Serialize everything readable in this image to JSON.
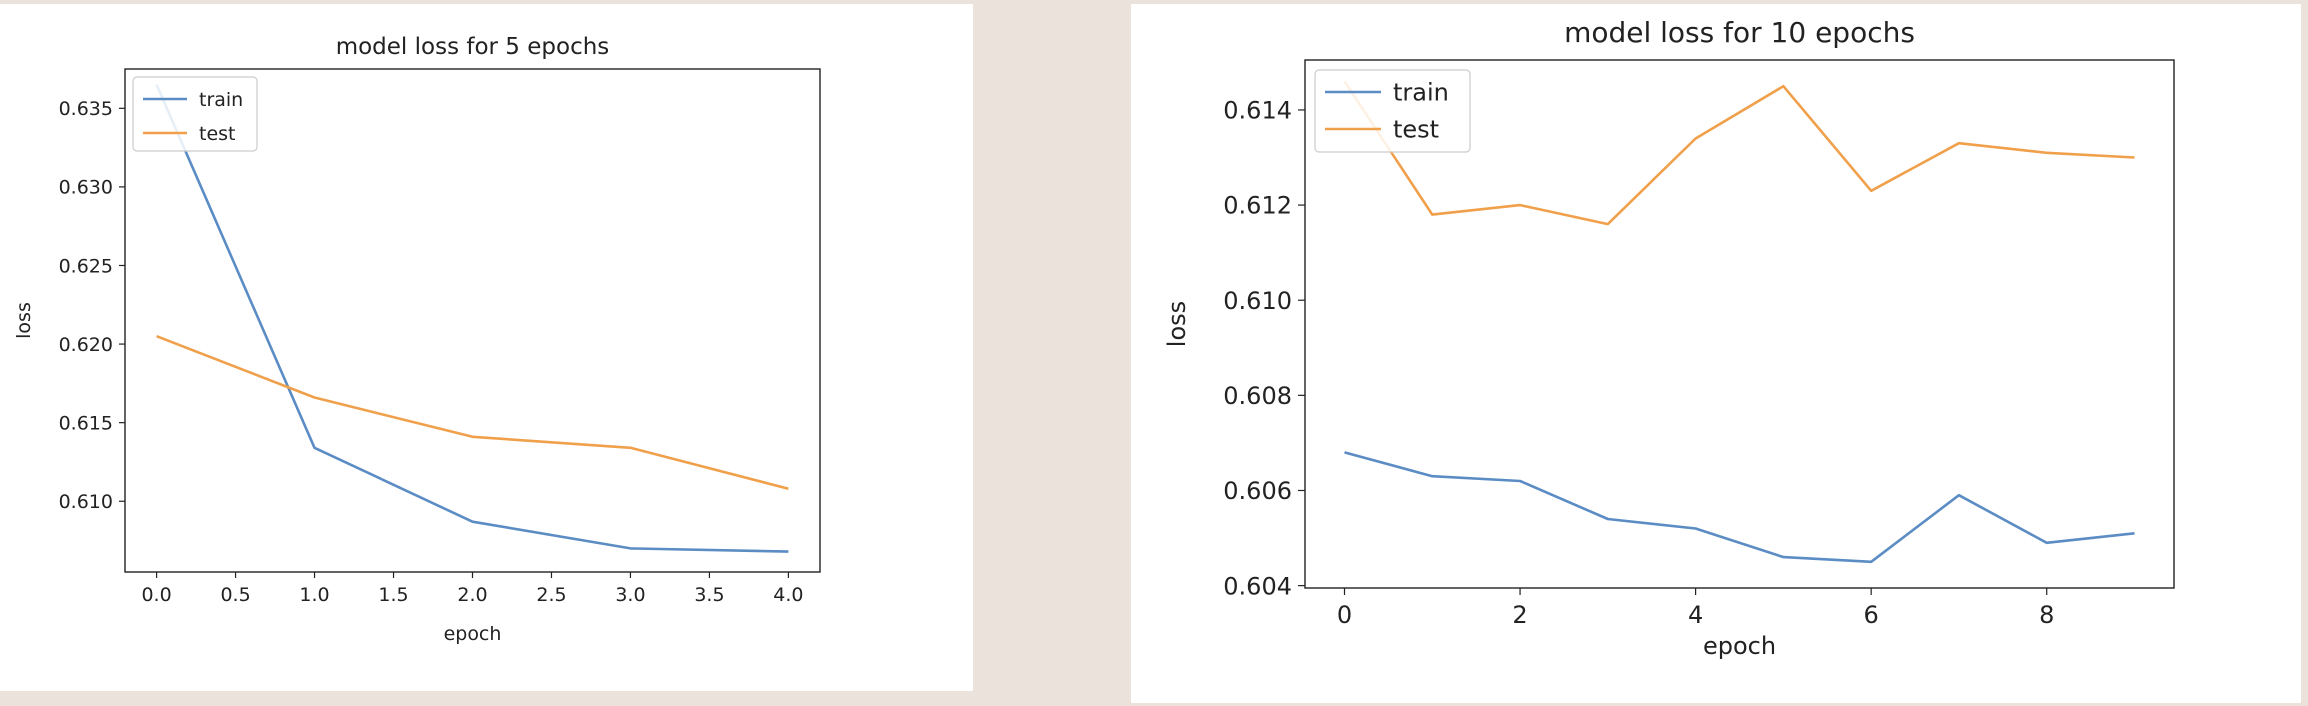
{
  "chart_data": [
    {
      "type": "line",
      "title": "model loss for 5 epochs",
      "xlabel": "epoch",
      "ylabel": "loss",
      "x": [
        0,
        1,
        2,
        3,
        4
      ],
      "xlim": [
        -0.2,
        4.2
      ],
      "ylim": [
        0.6055,
        0.6375
      ],
      "xticks": [
        0.0,
        0.5,
        1.0,
        1.5,
        2.0,
        2.5,
        3.0,
        3.5,
        4.0
      ],
      "xtick_labels": [
        "0.0",
        "0.5",
        "1.0",
        "1.5",
        "2.0",
        "2.5",
        "3.0",
        "3.5",
        "4.0"
      ],
      "yticks": [
        0.61,
        0.615,
        0.62,
        0.625,
        0.63,
        0.635
      ],
      "ytick_labels": [
        "0.610",
        "0.615",
        "0.620",
        "0.625",
        "0.630",
        "0.635"
      ],
      "legend_position": "top-left",
      "series": [
        {
          "name": "train",
          "color": "#5b8cc4",
          "values": [
            0.6365,
            0.6134,
            0.6087,
            0.607,
            0.6068
          ]
        },
        {
          "name": "test",
          "color": "#f0a04b",
          "values": [
            0.6205,
            0.6166,
            0.6141,
            0.6134,
            0.6108
          ]
        }
      ]
    },
    {
      "type": "line",
      "title": "model loss for 10 epochs",
      "xlabel": "epoch",
      "ylabel": "loss",
      "x": [
        0,
        1,
        2,
        3,
        4,
        5,
        6,
        7,
        8,
        9
      ],
      "xlim": [
        -0.45,
        9.45
      ],
      "ylim": [
        0.60395,
        0.61505
      ],
      "xticks": [
        0,
        2,
        4,
        6,
        8
      ],
      "xtick_labels": [
        "0",
        "2",
        "4",
        "6",
        "8"
      ],
      "yticks": [
        0.604,
        0.606,
        0.608,
        0.61,
        0.612,
        0.614
      ],
      "ytick_labels": [
        "0.604",
        "0.606",
        "0.608",
        "0.610",
        "0.612",
        "0.614"
      ],
      "legend_position": "top-left",
      "series": [
        {
          "name": "train",
          "color": "#5b8cc4",
          "values": [
            0.6068,
            0.6063,
            0.6062,
            0.6054,
            0.6052,
            0.6046,
            0.6045,
            0.6059,
            0.6049,
            0.6051
          ]
        },
        {
          "name": "test",
          "color": "#f0a04b",
          "values": [
            0.6146,
            0.6118,
            0.612,
            0.6116,
            0.6134,
            0.6145,
            0.6123,
            0.6133,
            0.6131,
            0.613
          ]
        }
      ]
    }
  ]
}
